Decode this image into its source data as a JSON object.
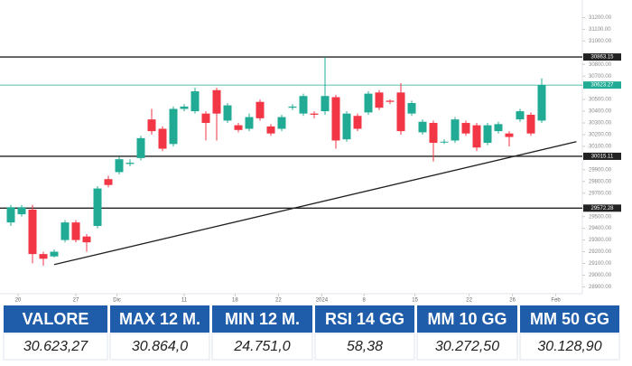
{
  "chart_data": {
    "type": "candlestick",
    "up_color": "#22ab94",
    "down_color": "#f23645",
    "open": [
      29450,
      29520,
      29560,
      29180,
      29160,
      29300,
      29450,
      29330,
      29420,
      29820,
      29880,
      29950,
      30000,
      30330,
      30250,
      30120,
      30420,
      30400,
      30380,
      30580,
      30320,
      30280,
      30250,
      30480,
      30270,
      30250,
      30430,
      30380,
      30380,
      30400,
      30520,
      30160,
      30360,
      30390,
      30560,
      30490,
      30560,
      30380,
      30220,
      30300,
      30140,
      30150,
      30300,
      30280,
      30130,
      30230,
      30210,
      30330,
      30370,
      30320
    ],
    "high": [
      29600,
      29600,
      29600,
      29200,
      29220,
      29470,
      29470,
      29350,
      29760,
      29850,
      30010,
      29990,
      30190,
      30420,
      30270,
      30440,
      30460,
      30600,
      30400,
      30600,
      30470,
      30300,
      30380,
      30500,
      30290,
      30370,
      30460,
      30550,
      30400,
      30863.15,
      30540,
      30400,
      30380,
      30570,
      30580,
      30500,
      30640,
      30490,
      30330,
      30320,
      30160,
      30350,
      30320,
      30300,
      30300,
      30310,
      30230,
      30420,
      30390,
      30680
    ],
    "low": [
      29420,
      29500,
      29100,
      29080,
      29150,
      29280,
      29280,
      29200,
      29400,
      29750,
      29860,
      29930,
      29980,
      30200,
      30060,
      30100,
      30400,
      30380,
      30150,
      30150,
      30300,
      30220,
      30230,
      30320,
      30190,
      30230,
      30410,
      30360,
      30340,
      30370,
      30080,
      30140,
      30230,
      30370,
      30410,
      30460,
      30200,
      30360,
      30200,
      29970,
      30120,
      30130,
      30190,
      30060,
      30110,
      30210,
      30100,
      30310,
      30190,
      30300
    ],
    "close": [
      29580,
      29580,
      29180,
      29140,
      29200,
      29450,
      29300,
      29280,
      29740,
      29770,
      29990,
      29960,
      30170,
      30230,
      30080,
      30420,
      30440,
      30570,
      30300,
      30380,
      30450,
      30240,
      30350,
      30340,
      30210,
      30350,
      30440,
      30530,
      30370,
      30530,
      30150,
      30380,
      30250,
      30550,
      30430,
      30480,
      30230,
      30470,
      30310,
      30130,
      30140,
      30330,
      30210,
      30090,
      30280,
      30290,
      30180,
      30400,
      30210,
      30623.27
    ],
    "ylim": [
      28880,
      31350
    ],
    "yticks": [
      {
        "value": 28900,
        "label": "28900.00"
      },
      {
        "value": 29000,
        "label": "29000.00"
      },
      {
        "value": 29100,
        "label": "29100.00"
      },
      {
        "value": 29200,
        "label": "29200.00"
      },
      {
        "value": 29300,
        "label": "29300.00"
      },
      {
        "value": 29400,
        "label": "29400.00"
      },
      {
        "value": 29500,
        "label": "29500.00"
      },
      {
        "value": 29700,
        "label": "29700.00"
      },
      {
        "value": 29800,
        "label": "29800.00"
      },
      {
        "value": 29900,
        "label": "29900.00"
      },
      {
        "value": 30100,
        "label": "30100.00"
      },
      {
        "value": 30200,
        "label": "30200.00"
      },
      {
        "value": 30300,
        "label": "30300.00"
      },
      {
        "value": 30400,
        "label": "30400.00"
      },
      {
        "value": 30500,
        "label": "30500.00"
      },
      {
        "value": 30700,
        "label": "30700.00"
      },
      {
        "value": 30800,
        "label": "30800.00"
      },
      {
        "value": 31000,
        "label": "31000.00"
      },
      {
        "value": 31100,
        "label": "31100.00"
      },
      {
        "value": 31200,
        "label": "31200.00"
      }
    ],
    "xticks": [
      {
        "value": 0.67,
        "label": "20"
      },
      {
        "value": 6,
        "label": "27"
      },
      {
        "value": 9.8,
        "label": "Dic"
      },
      {
        "value": 16,
        "label": "11"
      },
      {
        "value": 20.7,
        "label": "18"
      },
      {
        "value": 24.7,
        "label": "22"
      },
      {
        "value": 28.7,
        "label": "2024"
      },
      {
        "value": 32.6,
        "label": "8"
      },
      {
        "value": 37.3,
        "label": "15"
      },
      {
        "value": 42.3,
        "label": "22"
      },
      {
        "value": 46.3,
        "label": "26"
      },
      {
        "value": 50.3,
        "label": "Feb"
      }
    ],
    "levels": [
      30863.15,
      30015.11,
      29572.28
    ],
    "last_price": 30623.27,
    "trendline": {
      "x": [
        4,
        52.2
      ],
      "y": [
        29090,
        30140
      ]
    }
  },
  "table": {
    "header": [
      "VALORE",
      "MAX 12 M.",
      "MIN 12 M.",
      "RSI 14 GG",
      "MM 10 GG",
      "MM 50 GG"
    ],
    "rows": [
      [
        "30.623,27",
        "30.864,0",
        "24.751,0",
        "58,38",
        "30.272,50",
        "30.128,90"
      ]
    ]
  }
}
